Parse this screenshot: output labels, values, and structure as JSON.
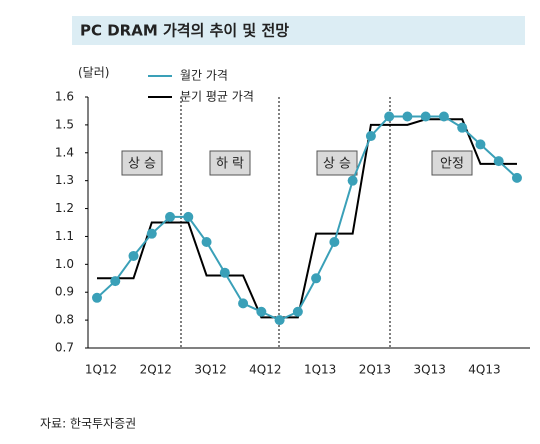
{
  "chart_data": {
    "type": "line",
    "title": "PC DRAM 가격의 추이 및 전망",
    "y_label": "(달러)",
    "categories": [
      "1Q12",
      null,
      null,
      "2Q12",
      null,
      null,
      "3Q12",
      null,
      null,
      "4Q12",
      null,
      null,
      "1Q13",
      null,
      null,
      "2Q13",
      null,
      null,
      "3Q13",
      null,
      null,
      "4Q13",
      null,
      null
    ],
    "series": [
      {
        "name": "월간 가격",
        "color": "#3aa0b8",
        "values": [
          0.88,
          0.94,
          1.03,
          1.11,
          1.17,
          1.17,
          1.08,
          0.97,
          0.86,
          0.83,
          0.8,
          0.83,
          0.95,
          1.08,
          1.3,
          1.46,
          1.53,
          1.53,
          1.53,
          1.53,
          1.49,
          1.43,
          1.37,
          1.31
        ]
      },
      {
        "name": "분기 평균 가격",
        "color": "#000000",
        "values": [
          0.95,
          0.95,
          0.95,
          1.15,
          1.15,
          1.15,
          0.96,
          0.96,
          0.96,
          0.81,
          0.81,
          0.81,
          1.11,
          1.11,
          1.11,
          1.5,
          1.5,
          1.5,
          1.52,
          1.52,
          1.52,
          1.36,
          1.36,
          1.36
        ]
      }
    ],
    "ylim": [
      0.7,
      1.6
    ],
    "yticks": [
      0.7,
      0.8,
      0.9,
      {
        "value": 1.0,
        "label": "1.0"
      },
      1.1,
      1.2,
      1.3,
      1.4,
      1.5,
      1.6
    ],
    "annotations": [
      "상 승",
      "하 락",
      "상 승",
      "안정"
    ],
    "source": "자료:   한국투자증권"
  }
}
